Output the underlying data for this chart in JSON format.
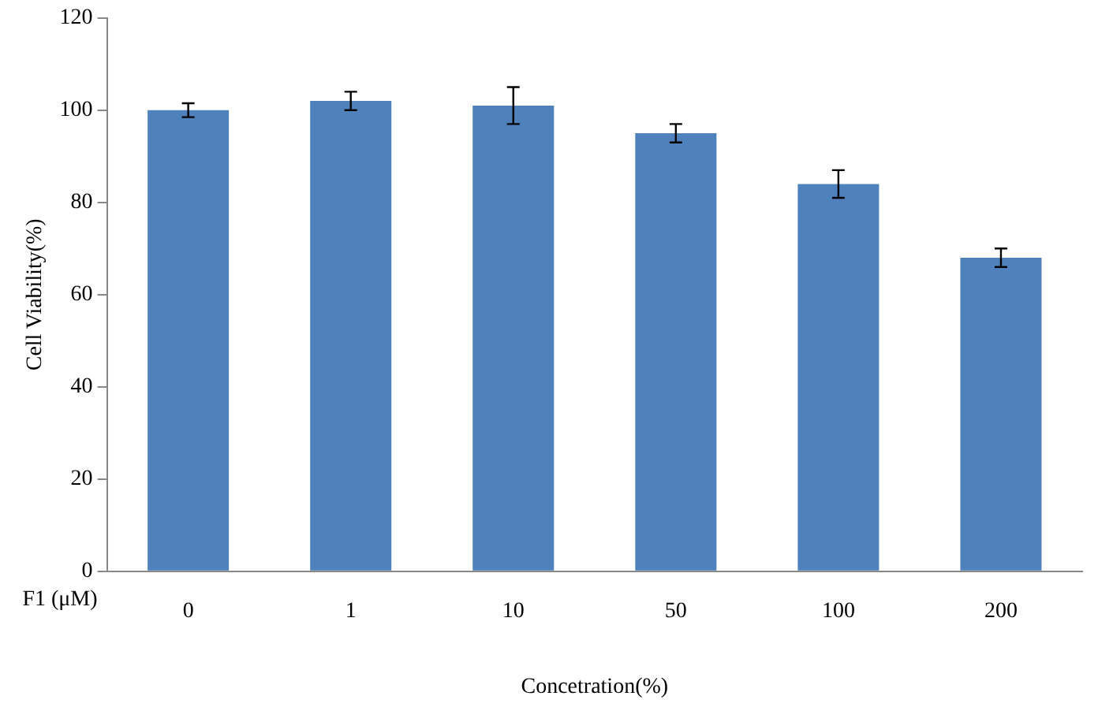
{
  "chart_data": {
    "type": "bar",
    "xlabel": "Concetration(%)",
    "ylabel": "Cell Viability(%)",
    "annotations": [
      "F1 (μM)"
    ],
    "categories": [
      "0",
      "1",
      "10",
      "50",
      "100",
      "200"
    ],
    "values": [
      100,
      102,
      101,
      95,
      84,
      68
    ],
    "errors": [
      1.5,
      2,
      4,
      2,
      3,
      2
    ],
    "color": "#4f81bd",
    "ylim": [
      0,
      120
    ],
    "yticks": [
      0,
      20,
      40,
      60,
      80,
      100,
      120
    ],
    "grid": false
  }
}
